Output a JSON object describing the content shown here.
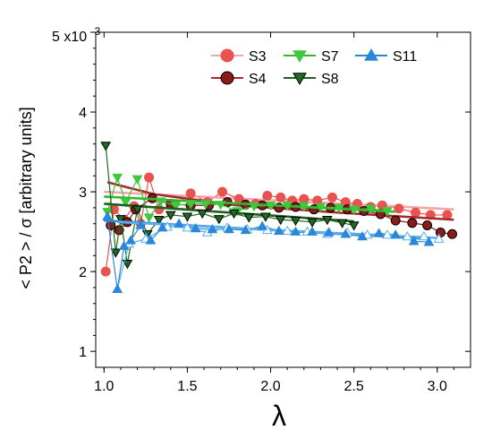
{
  "chart_data": {
    "type": "line",
    "xlabel": "λ",
    "ylabel": "< P2 > / σ  [arbitrary units]",
    "y_scale_label_base": "5 x10",
    "y_scale_label_exp": "-3",
    "xlim": [
      0.95,
      3.2
    ],
    "ylim": [
      0.0008,
      0.005
    ],
    "x_ticks": [
      {
        "value": 1.0,
        "label": "1.0"
      },
      {
        "value": 1.5,
        "label": "1.5"
      },
      {
        "value": 2.0,
        "label": "2.0"
      },
      {
        "value": 2.5,
        "label": "2.5"
      },
      {
        "value": 3.0,
        "label": "3.0"
      }
    ],
    "y_ticks": [
      {
        "value": 0.001,
        "label": "1"
      },
      {
        "value": 0.002,
        "label": "2"
      },
      {
        "value": 0.003,
        "label": "3"
      },
      {
        "value": 0.004,
        "label": "4"
      }
    ],
    "legend_position": "top-right",
    "series": [
      {
        "name": "S3",
        "marker": "circle",
        "color": "#e8534f",
        "fit_color": "#f4a6a6",
        "x": [
          1.01,
          1.06,
          1.12,
          1.18,
          1.22,
          1.27,
          1.33,
          1.42,
          1.52,
          1.62,
          1.71,
          1.81,
          1.91,
          1.98,
          2.06,
          2.13,
          2.2,
          2.28,
          2.37,
          2.45,
          2.52,
          2.6,
          2.67,
          2.77,
          2.87,
          2.96,
          3.06
        ],
        "y": [
          0.002,
          0.00278,
          0.00265,
          0.00282,
          0.0026,
          0.00318,
          0.00278,
          0.00284,
          0.00298,
          0.00287,
          0.003,
          0.00291,
          0.00285,
          0.00295,
          0.00293,
          0.00289,
          0.00291,
          0.00289,
          0.00293,
          0.00287,
          0.00285,
          0.00281,
          0.00283,
          0.00279,
          0.00274,
          0.00271,
          0.00271
        ],
        "fit": [
          [
            1.0,
            0.003
          ],
          [
            3.1,
            0.00278
          ]
        ]
      },
      {
        "name": "S4",
        "marker": "circle",
        "color": "#8b1a1a",
        "fit_color": "#a52a2a",
        "x": [
          1.04,
          1.09,
          1.14,
          1.19,
          1.29,
          1.4,
          1.52,
          1.63,
          1.74,
          1.85,
          1.95,
          2.05,
          2.15,
          2.26,
          2.36,
          2.46,
          2.56,
          2.66,
          2.75,
          2.85,
          2.94,
          3.02,
          3.09
        ],
        "y": [
          0.00258,
          0.00252,
          0.00262,
          0.00278,
          0.00292,
          0.00285,
          0.00283,
          0.00283,
          0.00287,
          0.00284,
          0.00283,
          0.0028,
          0.00281,
          0.00278,
          0.0028,
          0.00278,
          0.00276,
          0.00272,
          0.00264,
          0.00261,
          0.00258,
          0.00249,
          0.00247
        ],
        "fit": [
          [
            1.02,
            0.00312
          ],
          [
            1.3,
            0.00297
          ],
          [
            1.8,
            0.00283
          ],
          [
            2.4,
            0.00274
          ],
          [
            3.1,
            0.00265
          ]
        ]
      },
      {
        "name": "S7",
        "marker": "triangle-down",
        "color": "#3ec83e",
        "fit_color": "#2eb82e",
        "x": [
          1.02,
          1.08,
          1.13,
          1.2,
          1.27,
          1.34,
          1.43,
          1.52,
          1.61,
          1.7,
          1.8,
          1.9,
          2.0,
          2.1,
          2.2,
          2.3,
          2.41,
          2.5,
          2.6,
          2.7
        ],
        "y": [
          0.00275,
          0.00318,
          0.00287,
          0.00316,
          0.00268,
          0.00288,
          0.00283,
          0.00285,
          0.00285,
          0.00284,
          0.00276,
          0.00282,
          0.00283,
          0.00283,
          0.00282,
          0.00281,
          0.0028,
          0.00278,
          0.00279,
          0.00276
        ],
        "fit": [
          [
            1.0,
            0.00294
          ],
          [
            2.75,
            0.00275
          ]
        ]
      },
      {
        "name": "S8",
        "marker": "triangle-down",
        "color": "#1f6b1f",
        "fit_color": "#1e5e1e",
        "x": [
          1.01,
          1.07,
          1.1,
          1.14,
          1.2,
          1.26,
          1.33,
          1.4,
          1.5,
          1.59,
          1.69,
          1.78,
          1.87,
          1.97,
          2.06,
          2.15,
          2.25,
          2.34,
          2.43,
          2.5
        ],
        "y": [
          0.00358,
          0.00224,
          0.00266,
          0.0021,
          0.00278,
          0.00247,
          0.00265,
          0.00271,
          0.00269,
          0.00273,
          0.00266,
          0.00273,
          0.00268,
          0.00269,
          0.00265,
          0.00264,
          0.00262,
          0.00265,
          0.00261,
          0.00258
        ],
        "fit": [
          [
            1.0,
            0.00285
          ],
          [
            2.5,
            0.00263
          ]
        ]
      },
      {
        "name": "S11",
        "marker": "triangle-up",
        "color": "#2b87d8",
        "fit_color": "#2b87d8",
        "open_color": "#5ab0e8",
        "x": [
          1.02,
          1.08,
          1.12,
          1.16,
          1.22,
          1.28,
          1.35,
          1.45,
          1.55,
          1.65,
          1.75,
          1.85,
          1.95,
          2.05,
          2.15,
          2.25,
          2.35,
          2.45,
          2.55,
          2.65,
          2.75,
          2.86,
          2.95
        ],
        "y": [
          0.00269,
          0.00178,
          0.00232,
          0.00239,
          0.00258,
          0.00239,
          0.00255,
          0.0026,
          0.00254,
          0.00253,
          0.00253,
          0.00252,
          0.00257,
          0.00251,
          0.0025,
          0.0025,
          0.00249,
          0.00247,
          0.00244,
          0.00248,
          0.00246,
          0.00238,
          0.00237
        ],
        "fit": [
          [
            1.0,
            0.00264
          ],
          [
            2.95,
            0.00241
          ]
        ],
        "open_x": [
          1.08,
          1.15,
          1.25,
          1.38,
          1.5,
          1.62,
          1.74,
          1.86,
          1.98,
          2.1,
          2.22,
          2.34,
          2.46,
          2.58,
          2.7,
          2.82,
          2.92,
          3.01
        ],
        "open_y": [
          0.00178,
          0.00235,
          0.00241,
          0.00256,
          0.00255,
          0.00249,
          0.00255,
          0.00253,
          0.00252,
          0.00251,
          0.0025,
          0.00247,
          0.00249,
          0.00246,
          0.00246,
          0.00244,
          0.00244,
          0.00241
        ],
        "open_fit": [
          [
            1.08,
            0.00262
          ],
          [
            3.02,
            0.00242
          ]
        ]
      }
    ]
  }
}
